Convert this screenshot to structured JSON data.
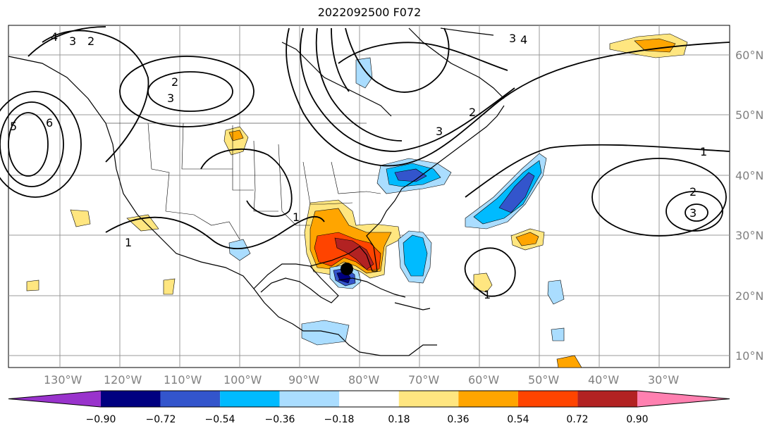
{
  "title": "2022092500 F072",
  "map": {
    "lat_labels": [
      "60°N",
      "50°N",
      "40°N",
      "30°N",
      "20°N",
      "10°N"
    ],
    "lon_labels": [
      "130°W",
      "120°W",
      "110°W",
      "100°W",
      "90°W",
      "80°W",
      "70°W",
      "60°W",
      "50°W",
      "40°W",
      "30°W"
    ],
    "contour_labels": [
      "4",
      "3",
      "2",
      "2",
      "3",
      "6",
      "5",
      "1",
      "1",
      "1",
      "2",
      "3",
      "3",
      "4",
      "1",
      "2",
      "3"
    ],
    "storm_marker": "storm-center"
  },
  "colorbar": {
    "colors": [
      "#9933cc",
      "#000080",
      "#3355cc",
      "#00bbff",
      "#aaddff",
      "#ffffff",
      "#ffe680",
      "#ffa500",
      "#ff4400",
      "#b22222",
      "#ff80b0"
    ],
    "tick_labels": [
      "−0.90",
      "−0.72",
      "−0.54",
      "−0.36",
      "−0.18",
      "0.18",
      "0.36",
      "0.54",
      "0.72",
      "0.90"
    ]
  }
}
